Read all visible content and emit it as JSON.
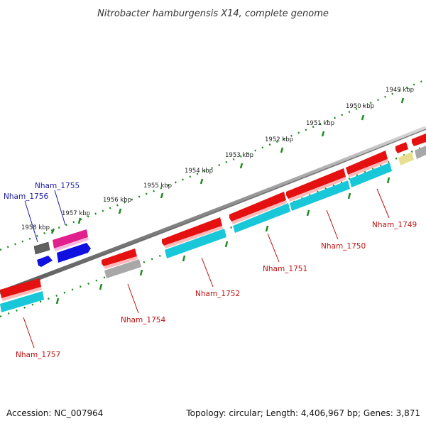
{
  "title": "Nitrobacter hamburgensis X14, complete genome",
  "footer": {
    "accession": "Accession: NC_007964",
    "topology": "Topology: circular; Length: 4,406,967 bp; Genes: 3,871"
  },
  "scale": {
    "tick_labels": [
      "1958 kbp",
      "1957 kbp",
      "1956 kbp",
      "1955 kbp",
      "1954 kbp",
      "1953 kbp",
      "1952 kbp",
      "1951 kbp",
      "1950 kbp",
      "1949 kbp"
    ],
    "tick_color": "#1e8c1e"
  },
  "genes": {
    "upper_strand": [
      {
        "label": "Nham_1755",
        "color": "#e0208c"
      },
      {
        "label": "Nham_1756",
        "color": "#606060"
      }
    ],
    "lower_strand": [
      {
        "label": "Nham_1757",
        "color": "#e51010"
      },
      {
        "label": "Nham_1754",
        "color": "#e51010"
      },
      {
        "label": "Nham_1752",
        "color": "#e51010"
      },
      {
        "label": "Nham_1751",
        "color": "#e51010"
      },
      {
        "label": "Nham_1750",
        "color": "#e51010"
      },
      {
        "label": "Nham_1749",
        "color": "#e51010"
      }
    ],
    "label_colors": {
      "blue": "#1a1aa6",
      "red": "#c01010"
    },
    "gene_colors": {
      "red": "#e51010",
      "cyan": "#18c8d8",
      "blue": "#1010e0",
      "magenta": "#e0208c",
      "gray": "#a8a8a8",
      "dark": "#555555",
      "yellow": "#e8e090"
    }
  }
}
